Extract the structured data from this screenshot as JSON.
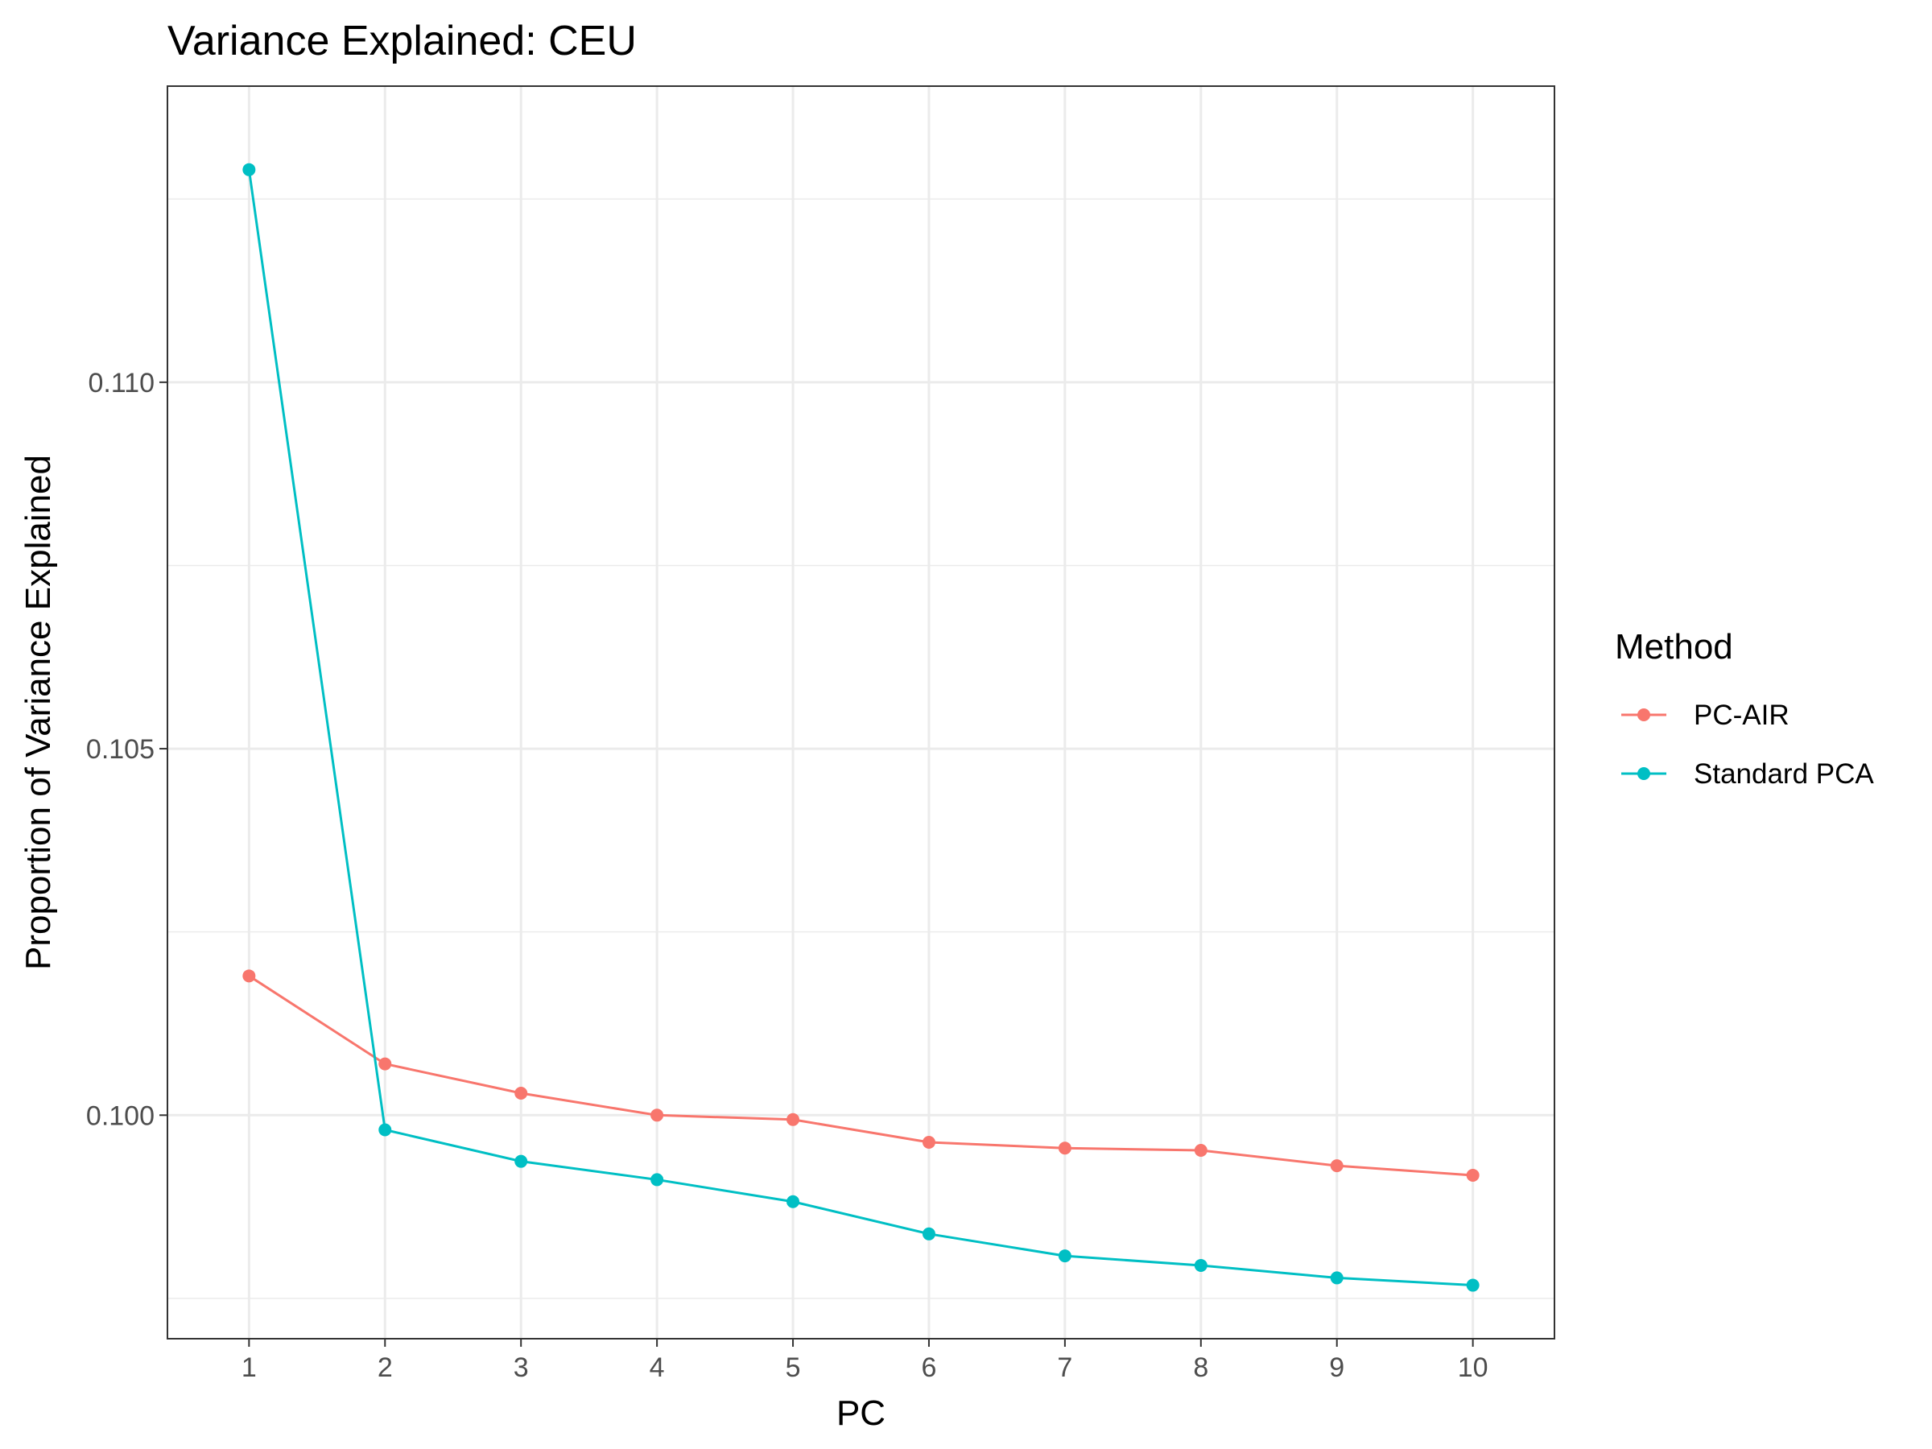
{
  "chart_data": {
    "type": "line",
    "title": "Variance Explained: CEU",
    "xlabel": "PC",
    "ylabel": "Proportion of Variance Explained",
    "x": [
      1,
      2,
      3,
      4,
      5,
      6,
      7,
      8,
      9,
      10
    ],
    "x_ticks": [
      "1",
      "2",
      "3",
      "4",
      "5",
      "6",
      "7",
      "8",
      "9",
      "10"
    ],
    "y_ticks": [
      0.1,
      0.105,
      0.11
    ],
    "y_tick_labels": [
      "0.100",
      "0.105",
      "0.110"
    ],
    "xlim": [
      0.4,
      10.6
    ],
    "ylim": [
      0.09695,
      0.11404
    ],
    "grid": true,
    "legend": {
      "title": "Method",
      "position": "right"
    },
    "series": [
      {
        "name": "PC-AIR",
        "color": "#F8766D",
        "values": [
          0.1019,
          0.1007,
          0.1003,
          0.1,
          0.09994,
          0.09963,
          0.09955,
          0.09952,
          0.09931,
          0.09918
        ]
      },
      {
        "name": "Standard PCA",
        "color": "#00BFC4",
        "values": [
          0.1129,
          0.0998,
          0.09937,
          0.09912,
          0.09882,
          0.09838,
          0.09808,
          0.09795,
          0.09778,
          0.09768
        ]
      }
    ]
  }
}
